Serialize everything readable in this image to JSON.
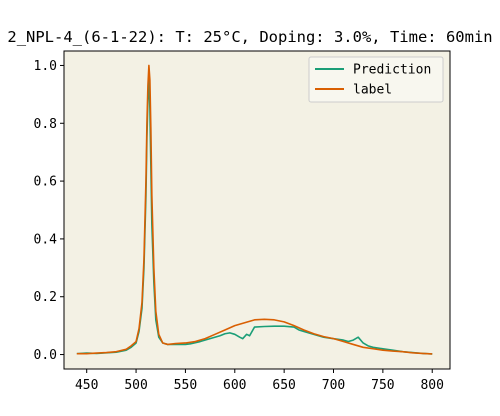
{
  "chart_data": {
    "type": "line",
    "title": "2_NPL-4_(6-1-22): T: 25°C, Doping: 3.0%, Time: 60min",
    "xlabel": "",
    "ylabel": "",
    "xlim": [
      427,
      818
    ],
    "ylim": [
      -0.05,
      1.05
    ],
    "x_ticks": [
      450,
      500,
      550,
      600,
      650,
      700,
      750,
      800
    ],
    "y_ticks": [
      0.0,
      0.2,
      0.4,
      0.6,
      0.8,
      1.0
    ],
    "x_tick_labels": [
      "450",
      "500",
      "550",
      "600",
      "650",
      "700",
      "750",
      "800"
    ],
    "y_tick_labels": [
      "0.0",
      "0.2",
      "0.4",
      "0.6",
      "0.8",
      "1.0"
    ],
    "grid": false,
    "legend_position": "upper right",
    "plot_background": "#f3f1e4",
    "series": [
      {
        "name": "Prediction",
        "color": "#1b9e77",
        "points": [
          [
            440,
            0.003
          ],
          [
            450,
            0.005
          ],
          [
            460,
            0.004
          ],
          [
            470,
            0.006
          ],
          [
            480,
            0.008
          ],
          [
            490,
            0.015
          ],
          [
            495,
            0.025
          ],
          [
            500,
            0.04
          ],
          [
            503,
            0.08
          ],
          [
            506,
            0.16
          ],
          [
            508,
            0.3
          ],
          [
            510,
            0.55
          ],
          [
            511,
            0.75
          ],
          [
            512,
            0.88
          ],
          [
            513,
            0.96
          ],
          [
            514,
            0.85
          ],
          [
            515,
            0.65
          ],
          [
            516,
            0.45
          ],
          [
            518,
            0.25
          ],
          [
            520,
            0.12
          ],
          [
            523,
            0.06
          ],
          [
            527,
            0.04
          ],
          [
            532,
            0.035
          ],
          [
            540,
            0.035
          ],
          [
            550,
            0.035
          ],
          [
            555,
            0.037
          ],
          [
            565,
            0.045
          ],
          [
            575,
            0.055
          ],
          [
            585,
            0.065
          ],
          [
            590,
            0.072
          ],
          [
            595,
            0.075
          ],
          [
            600,
            0.07
          ],
          [
            605,
            0.06
          ],
          [
            608,
            0.055
          ],
          [
            612,
            0.07
          ],
          [
            615,
            0.065
          ],
          [
            620,
            0.095
          ],
          [
            630,
            0.097
          ],
          [
            640,
            0.098
          ],
          [
            650,
            0.098
          ],
          [
            660,
            0.095
          ],
          [
            665,
            0.085
          ],
          [
            670,
            0.08
          ],
          [
            680,
            0.07
          ],
          [
            690,
            0.06
          ],
          [
            700,
            0.055
          ],
          [
            710,
            0.05
          ],
          [
            715,
            0.045
          ],
          [
            720,
            0.05
          ],
          [
            725,
            0.06
          ],
          [
            730,
            0.04
          ],
          [
            735,
            0.03
          ],
          [
            740,
            0.025
          ],
          [
            750,
            0.02
          ],
          [
            760,
            0.015
          ],
          [
            770,
            0.01
          ],
          [
            780,
            0.007
          ],
          [
            790,
            0.004
          ],
          [
            800,
            0.002
          ]
        ]
      },
      {
        "name": "label",
        "color": "#d95f02",
        "points": [
          [
            440,
            0.003
          ],
          [
            450,
            0.003
          ],
          [
            460,
            0.005
          ],
          [
            470,
            0.007
          ],
          [
            480,
            0.01
          ],
          [
            490,
            0.018
          ],
          [
            495,
            0.03
          ],
          [
            500,
            0.045
          ],
          [
            503,
            0.09
          ],
          [
            506,
            0.18
          ],
          [
            508,
            0.33
          ],
          [
            510,
            0.6
          ],
          [
            511,
            0.8
          ],
          [
            512,
            0.93
          ],
          [
            513,
            1.0
          ],
          [
            514,
            0.95
          ],
          [
            515,
            0.78
          ],
          [
            516,
            0.55
          ],
          [
            518,
            0.3
          ],
          [
            520,
            0.15
          ],
          [
            523,
            0.07
          ],
          [
            527,
            0.04
          ],
          [
            532,
            0.035
          ],
          [
            540,
            0.038
          ],
          [
            550,
            0.04
          ],
          [
            560,
            0.045
          ],
          [
            570,
            0.055
          ],
          [
            580,
            0.07
          ],
          [
            590,
            0.085
          ],
          [
            600,
            0.1
          ],
          [
            610,
            0.11
          ],
          [
            620,
            0.12
          ],
          [
            630,
            0.122
          ],
          [
            640,
            0.12
          ],
          [
            650,
            0.113
          ],
          [
            660,
            0.1
          ],
          [
            670,
            0.085
          ],
          [
            680,
            0.072
          ],
          [
            690,
            0.062
          ],
          [
            700,
            0.055
          ],
          [
            710,
            0.045
          ],
          [
            720,
            0.035
          ],
          [
            730,
            0.025
          ],
          [
            740,
            0.02
          ],
          [
            750,
            0.015
          ],
          [
            760,
            0.012
          ],
          [
            770,
            0.01
          ],
          [
            780,
            0.006
          ],
          [
            790,
            0.004
          ],
          [
            800,
            0.002
          ]
        ]
      }
    ]
  }
}
